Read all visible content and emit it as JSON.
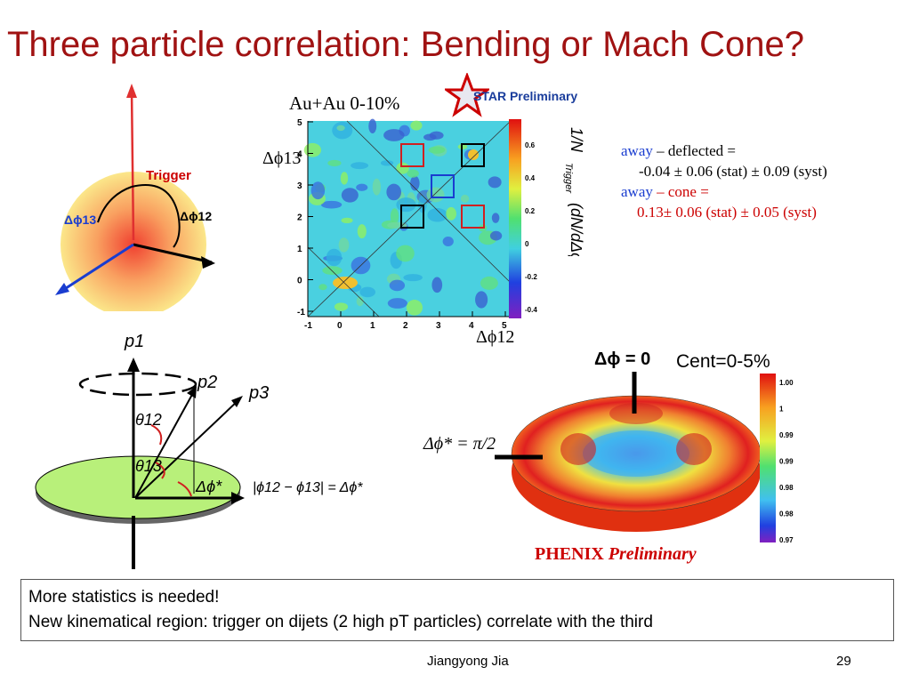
{
  "slide": {
    "title": "Three particle correlation: Bending or Mach Cone?",
    "footer_author": "Jiangyong Jia",
    "page_number": "29"
  },
  "trigger_diagram": {
    "trigger_label": "Trigger",
    "dphi13_label": "Δϕ13",
    "dphi12_label": "Δϕ12"
  },
  "star_plot": {
    "system_label": "Au+Au 0-10%",
    "preliminary_label": "STAR Preliminary",
    "xaxis_label": "Δϕ12",
    "yaxis_label": "Δϕ13",
    "x_ticks": [
      "-1",
      "0",
      "1",
      "2",
      "3",
      "4",
      "5"
    ],
    "y_ticks": [
      "-1",
      "0",
      "1",
      "2",
      "3",
      "4",
      "5"
    ],
    "colorbar_ticks": [
      "0.6",
      "0.4",
      "0.2",
      "0",
      "-0.2",
      "-0.4"
    ]
  },
  "results": {
    "line1_prefix": "away",
    "line1_rest": " – deflected =",
    "line2": "-0.04 ± 0.06 (stat) ± 0.09 (syst)",
    "line3_prefix": "away",
    "line3_rest": " – cone =",
    "line4": "0.13± 0.06 (stat) ± 0.05 (syst)"
  },
  "vector_diagram": {
    "p1": "p1",
    "p2": "p2",
    "p3": "p3",
    "theta12": "θ12",
    "theta13": "θ13",
    "dphi_star": "Δϕ*",
    "relation": "|ϕ12 − ϕ13| = Δϕ*"
  },
  "phenix_plot": {
    "dphi0_label": "Δϕ = 0",
    "cent_label": "Cent=0-5%",
    "dphi_eq_label": "Δϕ* = π/2",
    "preliminary_prefix": "PHENIX",
    "preliminary_suffix": " Preliminary",
    "colorbar_ticks": [
      "1.00",
      "1",
      "0.99",
      "0.99",
      "0.98",
      "0.98",
      "0.97"
    ]
  },
  "bottom_box": {
    "line1": "More statistics is needed!",
    "line2": "New kinematical region: trigger on dijets (2 high pT particles) correlate with the third"
  }
}
